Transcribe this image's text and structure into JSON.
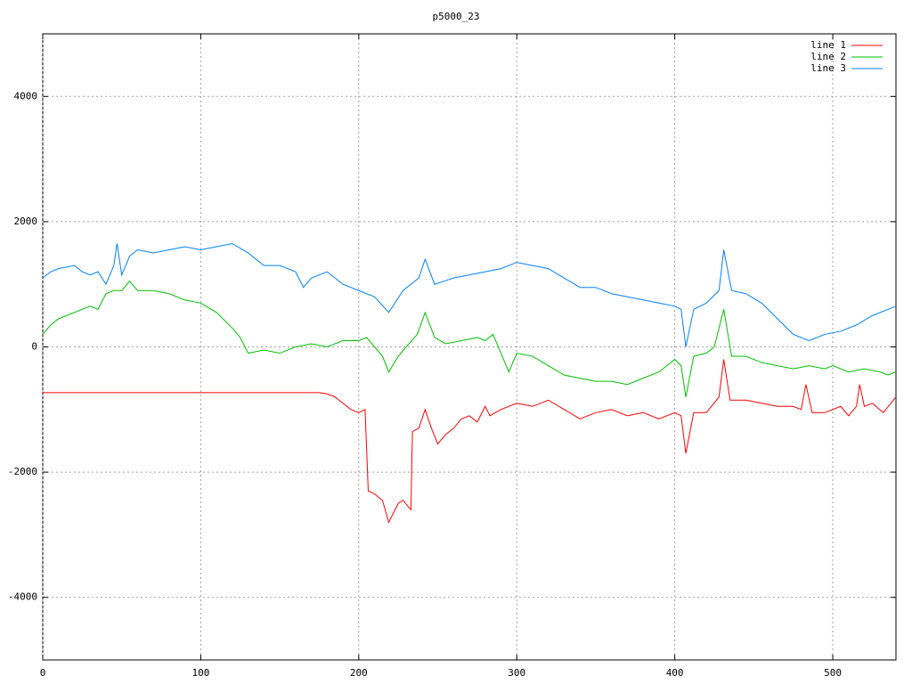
{
  "chart_data": {
    "type": "line",
    "title": "p5000_23",
    "xlim": [
      0,
      540
    ],
    "ylim": [
      -5000,
      5000
    ],
    "xticks": [
      0,
      100,
      200,
      300,
      400,
      500
    ],
    "yticks": [
      -4000,
      -2000,
      0,
      2000,
      4000
    ],
    "grid": true,
    "legend": "top-right",
    "series": [
      {
        "name": "line 1",
        "color": "#ff0000",
        "x": [
          0,
          175,
          180,
          185,
          195,
          200,
          204,
          206,
          210,
          215,
          219,
          225,
          228,
          233,
          234,
          238,
          242,
          246,
          250,
          255,
          260,
          265,
          270,
          275,
          280,
          283,
          290,
          300,
          310,
          320,
          330,
          340,
          350,
          360,
          370,
          380,
          390,
          400,
          404,
          407,
          412,
          420,
          428,
          431,
          435,
          445,
          455,
          465,
          475,
          480,
          483,
          487,
          495,
          505,
          510,
          515,
          517,
          520,
          525,
          532,
          540
        ],
        "values": [
          -730,
          -730,
          -750,
          -800,
          -1000,
          -1050,
          -1000,
          -2300,
          -2350,
          -2450,
          -2800,
          -2500,
          -2450,
          -2600,
          -1350,
          -1300,
          -1000,
          -1300,
          -1550,
          -1400,
          -1300,
          -1150,
          -1100,
          -1200,
          -950,
          -1100,
          -1000,
          -900,
          -950,
          -850,
          -1000,
          -1150,
          -1050,
          -1000,
          -1100,
          -1050,
          -1150,
          -1050,
          -1100,
          -1700,
          -1050,
          -1050,
          -800,
          -200,
          -850,
          -850,
          -900,
          -950,
          -950,
          -1000,
          -600,
          -1050,
          -1050,
          -950,
          -1100,
          -950,
          -600,
          -950,
          -900,
          -1050,
          -800
        ]
      },
      {
        "name": "line 2",
        "color": "#00c000",
        "x": [
          0,
          5,
          10,
          20,
          30,
          35,
          40,
          45,
          50,
          55,
          60,
          70,
          80,
          90,
          100,
          110,
          120,
          125,
          130,
          140,
          150,
          160,
          170,
          180,
          190,
          200,
          205,
          210,
          215,
          219,
          225,
          230,
          237,
          242,
          248,
          255,
          265,
          275,
          280,
          285,
          290,
          295,
          300,
          310,
          320,
          330,
          340,
          350,
          360,
          370,
          380,
          390,
          400,
          404,
          407,
          412,
          420,
          425,
          431,
          436,
          445,
          455,
          465,
          475,
          485,
          495,
          500,
          510,
          520,
          530,
          535,
          540
        ],
        "values": [
          200,
          350,
          450,
          550,
          650,
          600,
          850,
          900,
          900,
          1050,
          900,
          900,
          850,
          750,
          700,
          550,
          300,
          150,
          -100,
          -50,
          -100,
          0,
          50,
          0,
          100,
          100,
          150,
          0,
          -150,
          -400,
          -150,
          0,
          200,
          550,
          150,
          50,
          100,
          150,
          100,
          200,
          -100,
          -400,
          -100,
          -150,
          -300,
          -450,
          -500,
          -550,
          -550,
          -600,
          -500,
          -400,
          -200,
          -300,
          -800,
          -150,
          -100,
          0,
          600,
          -150,
          -150,
          -250,
          -300,
          -350,
          -300,
          -350,
          -300,
          -400,
          -350,
          -400,
          -450,
          -400
        ]
      },
      {
        "name": "line 3",
        "color": "#0080ff",
        "x": [
          0,
          5,
          10,
          20,
          25,
          30,
          35,
          40,
          45,
          47,
          50,
          55,
          60,
          70,
          80,
          90,
          100,
          110,
          120,
          130,
          140,
          150,
          160,
          165,
          170,
          180,
          190,
          200,
          210,
          219,
          228,
          238,
          242,
          248,
          260,
          270,
          280,
          290,
          300,
          310,
          320,
          330,
          340,
          350,
          360,
          370,
          380,
          390,
          400,
          404,
          407,
          412,
          420,
          428,
          431,
          436,
          445,
          455,
          465,
          475,
          485,
          495,
          505,
          515,
          525,
          535,
          540
        ],
        "values": [
          1100,
          1200,
          1250,
          1300,
          1200,
          1150,
          1200,
          1000,
          1300,
          1650,
          1150,
          1450,
          1550,
          1500,
          1550,
          1600,
          1550,
          1600,
          1650,
          1500,
          1300,
          1300,
          1200,
          950,
          1100,
          1200,
          1000,
          900,
          800,
          550,
          900,
          1100,
          1400,
          1000,
          1100,
          1150,
          1200,
          1250,
          1350,
          1300,
          1250,
          1100,
          950,
          950,
          850,
          800,
          750,
          700,
          650,
          600,
          0,
          600,
          700,
          900,
          1550,
          900,
          850,
          700,
          450,
          200,
          100,
          200,
          250,
          350,
          500,
          600,
          650
        ]
      }
    ]
  }
}
